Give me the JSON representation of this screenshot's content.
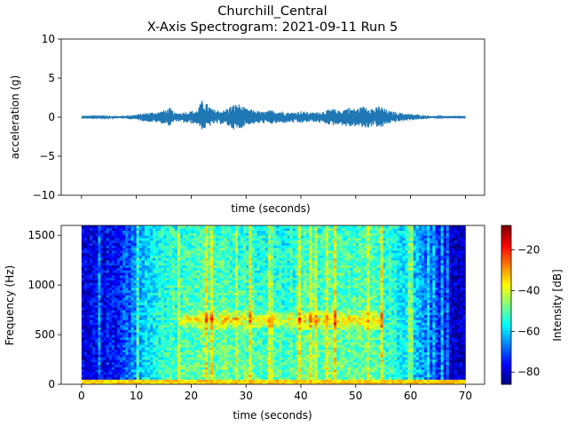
{
  "figure": {
    "title_line1": "Churchill_Central",
    "title_line2": "X-Axis Spectrogram: 2021-09-11 Run 5"
  },
  "chart_data": [
    {
      "type": "line",
      "title": "",
      "xlabel": "time (seconds)",
      "ylabel": "acceleration (g)",
      "xlim": [
        -3.7,
        73.5
      ],
      "ylim": [
        -10,
        10
      ],
      "yticks": [
        -10,
        -5,
        0,
        5,
        10
      ],
      "ytick_labels": [
        "−10",
        "−5",
        "0",
        "5",
        "10"
      ],
      "x_tick_labels_shown": false,
      "grid": false,
      "series": [
        {
          "color": "#1f77b4",
          "envelope": {
            "t": [
              0,
              5,
              8,
              10,
              12,
              14,
              15.5,
              16.2,
              17,
              19,
              21,
              22.1,
              24,
              26,
              27.5,
              28.5,
              30,
              31.5,
              33,
              34.5,
              36.5,
              38,
              40,
              42,
              44,
              46,
              47,
              48.5,
              50,
              52,
              53.5,
              54.3,
              56,
              58,
              60,
              62,
              64,
              66,
              70
            ],
            "upper": [
              0.05,
              0.1,
              0.2,
              0.35,
              0.6,
              0.7,
              1.0,
              1.2,
              0.5,
              0.7,
              0.9,
              2.3,
              1.0,
              0.9,
              1.6,
              1.8,
              1.1,
              0.9,
              0.7,
              0.9,
              0.8,
              0.6,
              0.8,
              0.6,
              0.8,
              1.1,
              0.8,
              1.3,
              1.1,
              1.5,
              1.1,
              1.5,
              0.8,
              0.6,
              0.4,
              0.3,
              0.15,
              0.05,
              0.05
            ],
            "lower": [
              -0.05,
              -0.1,
              -0.2,
              -0.35,
              -0.6,
              -0.7,
              -1.0,
              -1.2,
              -0.5,
              -0.8,
              -0.9,
              -1.7,
              -0.9,
              -0.9,
              -1.5,
              -1.8,
              -1.0,
              -0.9,
              -0.8,
              -0.9,
              -0.8,
              -0.7,
              -0.8,
              -0.6,
              -0.8,
              -1.1,
              -0.9,
              -1.3,
              -1.2,
              -1.5,
              -1.0,
              -1.6,
              -0.8,
              -0.6,
              -0.4,
              -0.3,
              -0.15,
              -0.05,
              -0.05
            ]
          }
        }
      ]
    },
    {
      "type": "heatmap",
      "title": "",
      "xlabel": "time (seconds)",
      "ylabel": "Frequency (Hz)",
      "xlim": [
        -3.7,
        73.5
      ],
      "ylim": [
        0,
        1600
      ],
      "xticks": [
        0,
        10,
        20,
        30,
        40,
        50,
        60,
        70
      ],
      "xtick_labels": [
        "0",
        "10",
        "20",
        "30",
        "40",
        "50",
        "60",
        "70"
      ],
      "yticks": [
        0,
        500,
        1000,
        1500
      ],
      "ytick_labels": [
        "0",
        "500",
        "1000",
        "1500"
      ],
      "data_extent": {
        "t": [
          0,
          70
        ],
        "f": [
          0,
          1600
        ]
      },
      "colormap": "jet",
      "colorbar": {
        "label": "Intensity [dB]",
        "range": [
          -86,
          -8
        ],
        "ticks": [
          -80,
          -60,
          -40,
          -20
        ],
        "tick_labels": [
          "−80",
          "−60",
          "−40",
          "−20"
        ]
      },
      "approx_intensity_profile": {
        "t": [
          0,
          6,
          8,
          11,
          15,
          18,
          25,
          35,
          45,
          55,
          60,
          63,
          66,
          70
        ],
        "dB": [
          -80,
          -75,
          -70,
          -62,
          -52,
          -50,
          -48,
          -50,
          -48,
          -50,
          -58,
          -66,
          -76,
          -82
        ]
      },
      "hot_band": {
        "freq_hz": 650,
        "t_range": [
          18,
          55
        ],
        "peak_dB": -18
      },
      "low_freq_floor": {
        "freq_max_hz": 40,
        "dB": -30
      }
    }
  ]
}
